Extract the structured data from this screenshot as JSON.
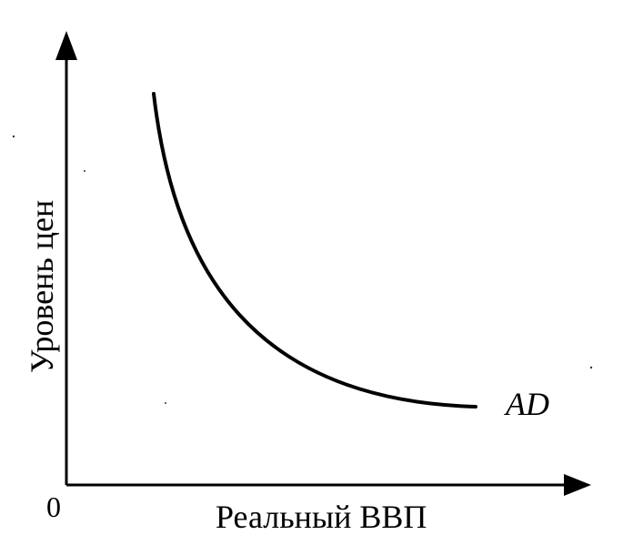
{
  "diagram": {
    "curve_label": "AD",
    "x_axis_label": "Реальный ВВП",
    "y_axis_label": "Уровень цен",
    "origin_label": "0"
  }
}
